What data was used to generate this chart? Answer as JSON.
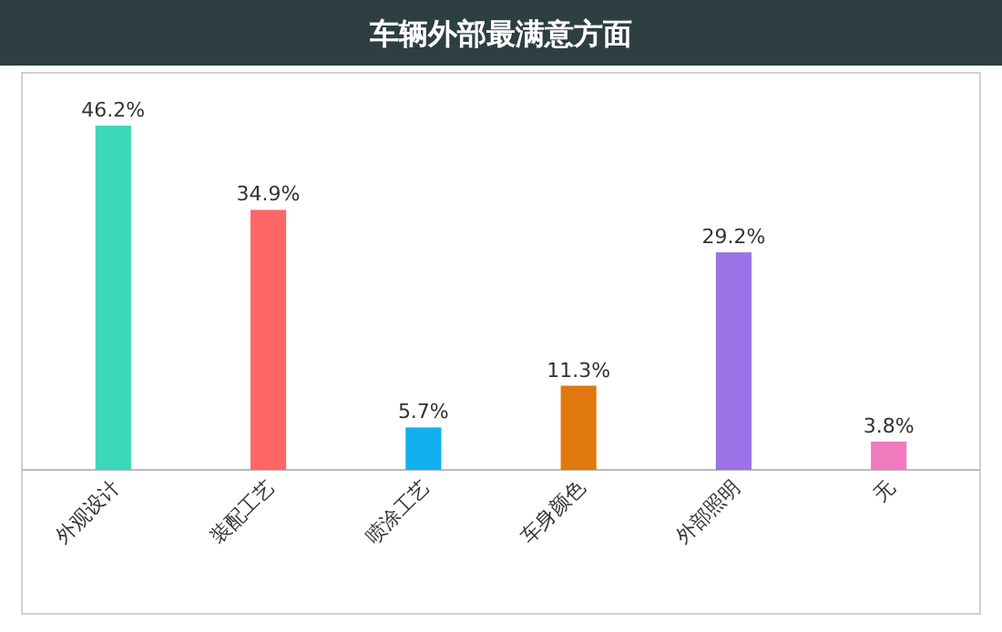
{
  "chart_data": {
    "type": "bar",
    "title": "车辆外部最满意方面",
    "categories": [
      "外观设计",
      "装配工艺",
      "喷涂工艺",
      "车身颜色",
      "外部照明",
      "无"
    ],
    "values": [
      46.2,
      34.9,
      5.7,
      11.3,
      29.2,
      3.8
    ],
    "colors": [
      "#3ad8b6",
      "#ff6666",
      "#11b1f0",
      "#e0780f",
      "#9b73e6",
      "#f07bbf"
    ],
    "value_labels": [
      "46.2%",
      "34.9%",
      "5.7%",
      "11.3%",
      "29.2%",
      "3.8%"
    ],
    "relative": false
  }
}
